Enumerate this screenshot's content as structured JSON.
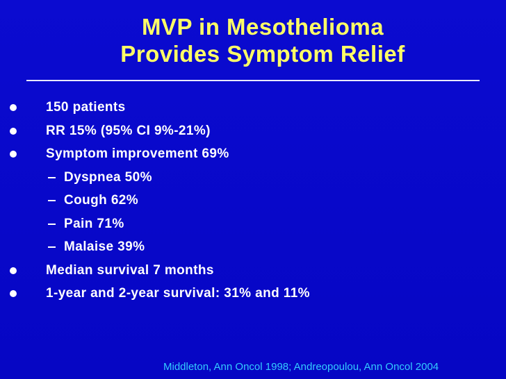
{
  "title": [
    "MVP in Mesothelioma",
    "Provides Symptom Relief"
  ],
  "items": [
    {
      "text": "150 patients"
    },
    {
      "text": "RR 15% (95% CI 9%-21%)"
    },
    {
      "text": "Symptom improvement 69%",
      "sub": [
        "Dyspnea 50%",
        "Cough 62%",
        "Pain 71%",
        "Malaise 39%"
      ]
    },
    {
      "text": "Median survival 7 months"
    },
    {
      "text": "1-year and 2-year survival: 31% and 11%"
    }
  ],
  "citation": "Middleton, Ann Oncol 1998; Andreopoulou, Ann Oncol 2004"
}
